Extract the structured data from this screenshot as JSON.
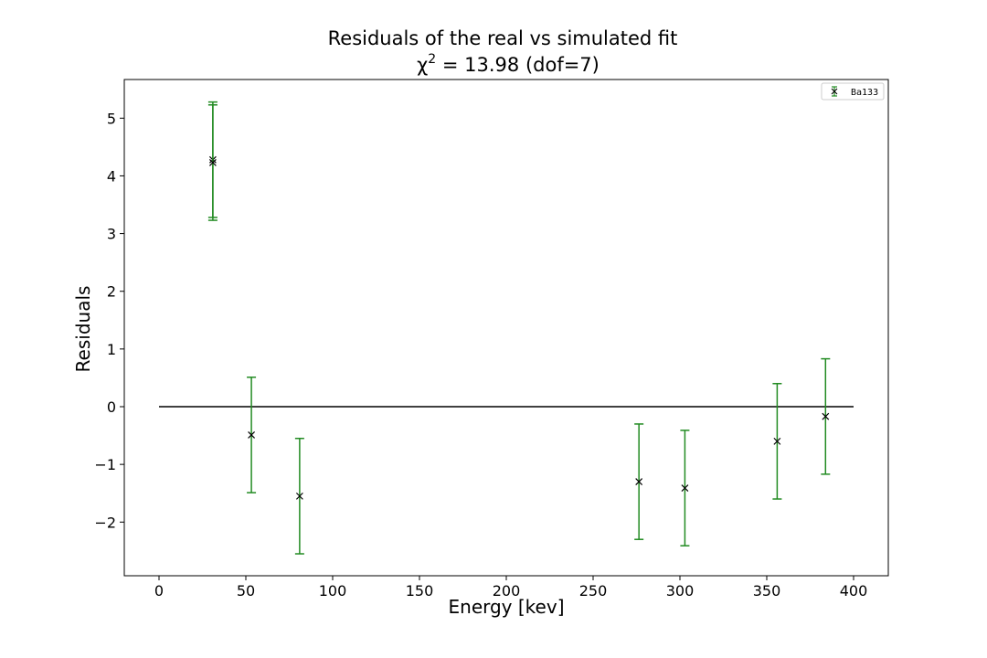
{
  "chart_data": {
    "type": "scatter",
    "title": "Residuals of the real vs simulated fit",
    "subtitle_prefix": "χ",
    "subtitle_sup": "2",
    "subtitle_rest": " = 13.98 (dof=7)",
    "xlabel": "Energy [kev]",
    "ylabel": "Residuals",
    "xlim": [
      -20,
      420
    ],
    "ylim": [
      -2.93,
      5.67
    ],
    "xticks": [
      0,
      50,
      100,
      150,
      200,
      250,
      300,
      350,
      400
    ],
    "xtick_labels": [
      "0",
      "50",
      "100",
      "150",
      "200",
      "250",
      "300",
      "350",
      "400"
    ],
    "yticks": [
      -2,
      -1,
      0,
      1,
      2,
      3,
      4,
      5
    ],
    "ytick_labels": [
      "−2",
      "−1",
      "0",
      "1",
      "2",
      "3",
      "4",
      "5"
    ],
    "grid": false,
    "legend_position": "top-right",
    "reference_line": {
      "y": 0,
      "x_start": 0,
      "x_end": 400,
      "color": "#000000"
    },
    "series": [
      {
        "name": "Ba133",
        "marker": "x",
        "marker_color": "#000000",
        "errorbar_color": "#228B22",
        "points": [
          {
            "x": 31.0,
            "y": 4.28,
            "yerr": 1.0
          },
          {
            "x": 31.0,
            "y": 4.23,
            "yerr": 1.0
          },
          {
            "x": 53.2,
            "y": -0.49,
            "yerr": 1.0
          },
          {
            "x": 80.99,
            "y": -1.55,
            "yerr": 1.0
          },
          {
            "x": 276.4,
            "y": -1.3,
            "yerr": 1.0
          },
          {
            "x": 302.85,
            "y": -1.41,
            "yerr": 1.0
          },
          {
            "x": 356.0,
            "y": -0.6,
            "yerr": 1.0
          },
          {
            "x": 383.85,
            "y": -0.17,
            "yerr": 1.0
          }
        ]
      }
    ]
  }
}
